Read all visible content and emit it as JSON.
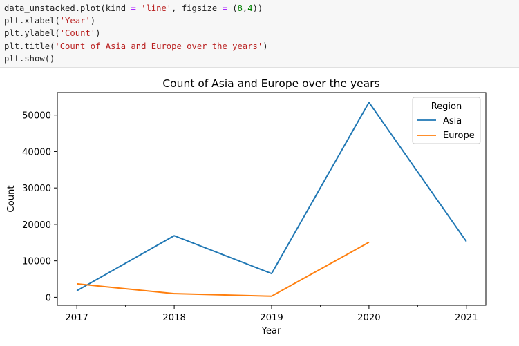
{
  "code_cell": {
    "line1": {
      "a": "data_unstacked.plot(kind ",
      "b": "=",
      "c": " ",
      "d": "'line'",
      "e": ", figsize ",
      "f": "=",
      "g": " (",
      "h": "8",
      "i": ",",
      "j": "4",
      "k": "))"
    },
    "line2": {
      "a": "plt.xlabel(",
      "b": "'Year'",
      "c": ")"
    },
    "line3": {
      "a": "plt.ylabel(",
      "b": "'Count'",
      "c": ")"
    },
    "line4": {
      "a": "plt.title(",
      "b": "'Count of Asia and Europe over the years'",
      "c": ")"
    },
    "line5": {
      "a": "plt.show()"
    }
  },
  "chart_data": {
    "type": "line",
    "title": "Count of Asia and Europe over the years",
    "xlabel": "Year",
    "ylabel": "Count",
    "x_ticks": [
      "2017",
      "2018",
      "2019",
      "2020",
      "2021"
    ],
    "y_ticks": [
      "0",
      "10000",
      "20000",
      "30000",
      "40000",
      "50000"
    ],
    "xlim": [
      2016.8,
      2021.2
    ],
    "ylim": [
      -2200,
      56200
    ],
    "grid": false,
    "legend": {
      "title": "Region",
      "placement": "top-right"
    },
    "series": [
      {
        "name": "Asia",
        "color": "#1f77b4",
        "x": [
          2017,
          2018,
          2019,
          2020,
          2021
        ],
        "y": [
          1800,
          16900,
          6500,
          53500,
          15300
        ]
      },
      {
        "name": "Europe",
        "color": "#ff7f0e",
        "x": [
          2017,
          2018,
          2019,
          2020
        ],
        "y": [
          3700,
          1000,
          300,
          15100
        ]
      }
    ]
  }
}
